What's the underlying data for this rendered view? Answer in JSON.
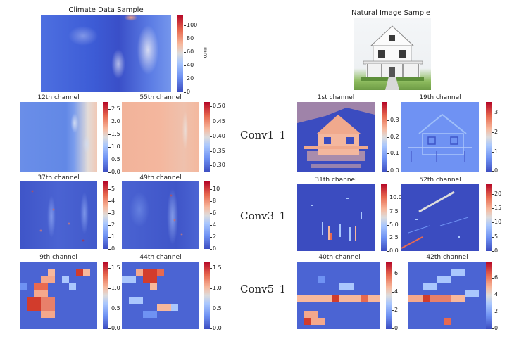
{
  "left_header": {
    "title": "Climate Data Sample",
    "colorbar_ticks": [
      "0",
      "20",
      "40",
      "60",
      "80",
      "100"
    ],
    "unit": "mm"
  },
  "right_header": {
    "title": "Natural Image Sample"
  },
  "layers": [
    {
      "label": "Conv1_1"
    },
    {
      "label": "Conv3_1"
    },
    {
      "label": "Conv5_1"
    }
  ],
  "panels": {
    "conv1_left_a": {
      "title": "12th channel",
      "ticks": [
        "0.0",
        "0.5",
        "1.0",
        "1.5",
        "2.0",
        "2.5"
      ]
    },
    "conv1_left_b": {
      "title": "55th channel",
      "ticks": [
        "0.30",
        "0.35",
        "0.40",
        "0.45",
        "0.50"
      ]
    },
    "conv1_right_a": {
      "title": "1st channel",
      "ticks": [
        "0.0",
        "0.1",
        "0.2",
        "0.3"
      ]
    },
    "conv1_right_b": {
      "title": "19th channel",
      "ticks": [
        "0",
        "1",
        "2",
        "3"
      ]
    },
    "conv3_left_a": {
      "title": "37th channel",
      "ticks": [
        "0",
        "1",
        "2",
        "3",
        "4",
        "5"
      ]
    },
    "conv3_left_b": {
      "title": "49th channel",
      "ticks": [
        "0",
        "2",
        "4",
        "6",
        "8",
        "10"
      ]
    },
    "conv3_right_a": {
      "title": "31th channel",
      "ticks": [
        "0.0",
        "2.5",
        "5.0",
        "7.5",
        "10.0"
      ]
    },
    "conv3_right_b": {
      "title": "52th channel",
      "ticks": [
        "0",
        "5",
        "10",
        "15",
        "20"
      ]
    },
    "conv5_left_a": {
      "title": "9th channel",
      "ticks": [
        "0.0",
        "0.5",
        "1.0",
        "1.5"
      ]
    },
    "conv5_left_b": {
      "title": "44th channel",
      "ticks": [
        "0.0",
        "0.5",
        "1.0",
        "1.5"
      ]
    },
    "conv5_right_a": {
      "title": "40th channel",
      "ticks": [
        "0",
        "2",
        "4",
        "6"
      ]
    },
    "conv5_right_b": {
      "title": "42th channel",
      "ticks": [
        "0",
        "2",
        "4",
        "6"
      ]
    }
  }
}
